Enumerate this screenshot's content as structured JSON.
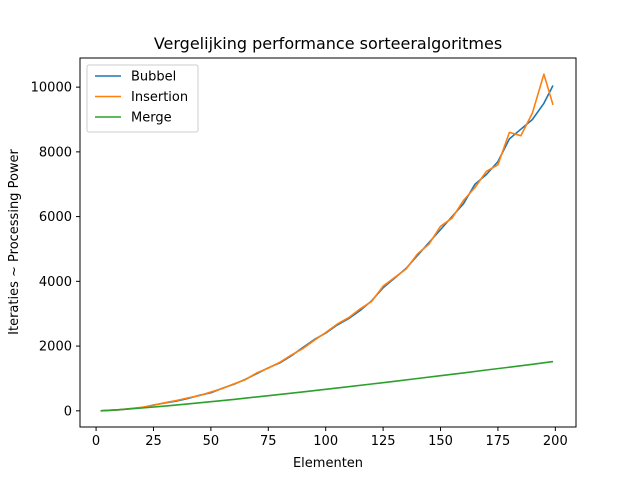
{
  "chart_data": {
    "type": "line",
    "title": "Vergelijking performance sorteeralgoritmes",
    "xlabel": "Elementen",
    "ylabel": "Iteraties ~ Processing Power",
    "xlim": [
      -7,
      209
    ],
    "ylim": [
      -500,
      10900
    ],
    "xticks": [
      0,
      25,
      50,
      75,
      100,
      125,
      150,
      175,
      200
    ],
    "yticks": [
      0,
      2000,
      4000,
      6000,
      8000,
      10000
    ],
    "legend_position": "top-left",
    "grid": false,
    "series": [
      {
        "name": "Bubbel",
        "color": "#1f77b4",
        "x": [
          2,
          10,
          20,
          25,
          30,
          35,
          40,
          45,
          50,
          55,
          60,
          65,
          70,
          75,
          80,
          85,
          90,
          95,
          100,
          105,
          110,
          115,
          120,
          125,
          130,
          135,
          140,
          145,
          150,
          155,
          160,
          165,
          170,
          175,
          180,
          185,
          190,
          195,
          199
        ],
        "y": [
          0,
          30,
          100,
          180,
          240,
          300,
          380,
          480,
          560,
          700,
          820,
          970,
          1150,
          1330,
          1480,
          1700,
          1950,
          2200,
          2400,
          2650,
          2850,
          3100,
          3400,
          3800,
          4100,
          4400,
          4800,
          5200,
          5600,
          6000,
          6400,
          7000,
          7300,
          7700,
          8400,
          8700,
          9000,
          9500,
          10050
        ]
      },
      {
        "name": "Insertion",
        "color": "#ff7f0e",
        "x": [
          2,
          10,
          20,
          25,
          30,
          35,
          40,
          45,
          50,
          55,
          60,
          65,
          70,
          75,
          80,
          85,
          90,
          95,
          100,
          105,
          110,
          115,
          120,
          125,
          130,
          135,
          140,
          145,
          150,
          155,
          160,
          165,
          170,
          175,
          180,
          185,
          190,
          195,
          199
        ],
        "y": [
          0,
          30,
          110,
          170,
          250,
          320,
          400,
          470,
          580,
          690,
          830,
          960,
          1170,
          1320,
          1500,
          1720,
          1920,
          2180,
          2420,
          2680,
          2880,
          3150,
          3380,
          3850,
          4120,
          4380,
          4850,
          5150,
          5700,
          5950,
          6500,
          6900,
          7400,
          7600,
          8600,
          8500,
          9200,
          10400,
          9450
        ]
      },
      {
        "name": "Merge",
        "color": "#2ca02c",
        "x": [
          2,
          10,
          20,
          30,
          40,
          50,
          60,
          70,
          80,
          90,
          100,
          110,
          120,
          130,
          140,
          150,
          160,
          170,
          180,
          190,
          199
        ],
        "y": [
          2,
          33,
          86,
          147,
          213,
          282,
          354,
          429,
          506,
          584,
          664,
          746,
          829,
          913,
          998,
          1084,
          1171,
          1260,
          1349,
          1438,
          1520
        ]
      }
    ]
  }
}
